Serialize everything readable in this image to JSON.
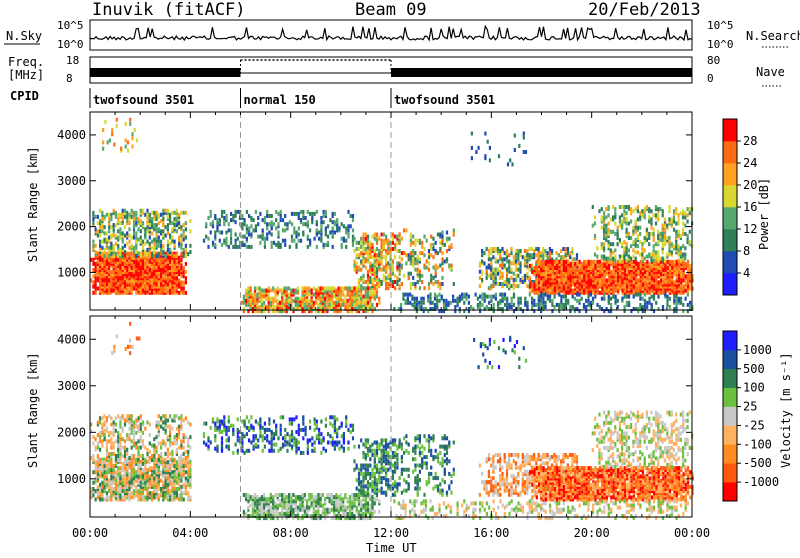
{
  "header": {
    "station": "Inuvik (fitACF)",
    "beam": "Beam 09",
    "date": "20/Feb/2013"
  },
  "top_panels": {
    "nsky_label": "N.Sky",
    "nsky_ticks": [
      "10^5",
      "10^0"
    ],
    "nsearch_label": "N.Search",
    "nsearch_ticks": [
      "10^5",
      "10^0"
    ],
    "freq_label_line1": "Freq.",
    "freq_label_line2": "[MHz]",
    "freq_ticks": [
      "18",
      "8"
    ],
    "nave_label": "Nave",
    "nave_ticks": [
      "80",
      "0"
    ],
    "cpid_label": "CPID",
    "cpid_segments": [
      {
        "label": "twofsound 3501",
        "start_hour": 0,
        "end_hour": 6
      },
      {
        "label": "normal 150",
        "start_hour": 6,
        "end_hour": 12
      },
      {
        "label": "twofsound 3501",
        "start_hour": 12,
        "end_hour": 24
      }
    ]
  },
  "colors": {
    "power": [
      "#1e1eff",
      "#1f4bb4",
      "#2e7f5a",
      "#57a86c",
      "#d8d82e",
      "#ffa020",
      "#ff6a10",
      "#ff0000"
    ],
    "velocity": [
      "#ff0000",
      "#ff5a10",
      "#ff8c20",
      "#ffb060",
      "#c8c8c8",
      "#6cc040",
      "#2e8050",
      "#1a50a0",
      "#1e1eff"
    ],
    "ground": "#888888"
  },
  "chart_data": [
    {
      "type": "heatmap",
      "name": "power",
      "ylabel": "Slant Range [km]",
      "yticks": [
        "1000",
        "2000",
        "3000",
        "4000"
      ],
      "ylim": [
        180,
        4500
      ],
      "xlim_hours": [
        0,
        24
      ],
      "colorbar_label": "Power [dB]",
      "colorbar_ticks": [
        "4",
        "8",
        "12",
        "16",
        "20",
        "24",
        "28"
      ],
      "colorbar_range": [
        0,
        32
      ],
      "scatter_regions": [
        {
          "t0": 0.0,
          "t1": 3.8,
          "r0": 600,
          "r1": 1500,
          "vmin": 22,
          "vmax": 32,
          "density": 0.95
        },
        {
          "t0": 0.0,
          "t1": 4.0,
          "r0": 1400,
          "r1": 2400,
          "vmin": 6,
          "vmax": 22,
          "density": 0.45
        },
        {
          "t0": 0.3,
          "t1": 2.0,
          "r0": 3700,
          "r1": 4400,
          "vmin": 14,
          "vmax": 28,
          "density": 0.08
        },
        {
          "t0": 4.5,
          "t1": 10.5,
          "r0": 1600,
          "r1": 2400,
          "vmin": 4,
          "vmax": 16,
          "density": 0.25
        },
        {
          "t0": 6.0,
          "t1": 11.5,
          "r0": 200,
          "r1": 700,
          "vmin": 12,
          "vmax": 30,
          "density": 0.7
        },
        {
          "t0": 10.5,
          "t1": 12.5,
          "r0": 700,
          "r1": 1900,
          "vmin": 10,
          "vmax": 30,
          "density": 0.5
        },
        {
          "t0": 12.3,
          "t1": 14.5,
          "r0": 700,
          "r1": 2000,
          "vmin": 6,
          "vmax": 28,
          "density": 0.25
        },
        {
          "t0": 15.5,
          "t1": 19.5,
          "r0": 700,
          "r1": 1600,
          "vmin": 4,
          "vmax": 26,
          "density": 0.45
        },
        {
          "t0": 17.5,
          "t1": 24.0,
          "r0": 600,
          "r1": 1300,
          "vmin": 22,
          "vmax": 32,
          "density": 0.9
        },
        {
          "t0": 20.0,
          "t1": 24.0,
          "r0": 1300,
          "r1": 2500,
          "vmin": 8,
          "vmax": 22,
          "density": 0.35
        },
        {
          "t0": 12.0,
          "t1": 24.0,
          "r0": 200,
          "r1": 600,
          "vmin": 4,
          "vmax": 14,
          "density": 0.3
        },
        {
          "t0": 15.0,
          "t1": 17.5,
          "r0": 3400,
          "r1": 4100,
          "vmin": 4,
          "vmax": 12,
          "density": 0.06
        }
      ]
    },
    {
      "type": "heatmap",
      "name": "velocity",
      "ylabel": "Slant Range [km]",
      "yticks": [
        "1000",
        "2000",
        "3000",
        "4000"
      ],
      "ylim": [
        180,
        4500
      ],
      "xlim_hours": [
        0,
        24
      ],
      "xticks": [
        "00:00",
        "04:00",
        "08:00",
        "12:00",
        "16:00",
        "20:00",
        "00:00"
      ],
      "xlabel": "Time UT",
      "colorbar_label": "Velocity [m s⁻¹]",
      "colorbar_ticks": [
        "-1000",
        "-500",
        "-100",
        "-25",
        "25",
        "100",
        "500",
        "1000"
      ],
      "scatter_regions": [
        {
          "t0": 0.0,
          "t1": 4.0,
          "r0": 600,
          "r1": 1500,
          "vmin": 2,
          "vmax": 6,
          "density": 0.7
        },
        {
          "t0": 0.0,
          "t1": 4.0,
          "r0": 1400,
          "r1": 2400,
          "vmin": 2,
          "vmax": 6,
          "density": 0.35
        },
        {
          "t0": 0.3,
          "t1": 2.0,
          "r0": 3700,
          "r1": 4400,
          "vmin": 1,
          "vmax": 4,
          "density": 0.06
        },
        {
          "t0": 4.5,
          "t1": 10.5,
          "r0": 1600,
          "r1": 2400,
          "vmin": 5,
          "vmax": 8,
          "density": 0.25
        },
        {
          "t0": 6.0,
          "t1": 11.5,
          "r0": 200,
          "r1": 700,
          "vmin": 4,
          "vmax": 6,
          "density": 0.6
        },
        {
          "t0": 10.5,
          "t1": 12.5,
          "r0": 700,
          "r1": 1900,
          "vmin": 5,
          "vmax": 7,
          "density": 0.45
        },
        {
          "t0": 12.3,
          "t1": 14.5,
          "r0": 700,
          "r1": 2000,
          "vmin": 5,
          "vmax": 7,
          "density": 0.25
        },
        {
          "t0": 15.5,
          "t1": 19.5,
          "r0": 700,
          "r1": 1600,
          "vmin": 1,
          "vmax": 4,
          "density": 0.4
        },
        {
          "t0": 17.5,
          "t1": 24.0,
          "r0": 600,
          "r1": 1300,
          "vmin": 0,
          "vmax": 3,
          "density": 0.8
        },
        {
          "t0": 20.0,
          "t1": 24.0,
          "r0": 1300,
          "r1": 2500,
          "vmin": 3,
          "vmax": 5,
          "density": 0.3
        },
        {
          "t0": 12.0,
          "t1": 24.0,
          "r0": 200,
          "r1": 600,
          "vmin": 3,
          "vmax": 5,
          "density": 0.25
        },
        {
          "t0": 15.0,
          "t1": 17.5,
          "r0": 3400,
          "r1": 4100,
          "vmin": 5,
          "vmax": 8,
          "density": 0.06
        }
      ]
    }
  ]
}
